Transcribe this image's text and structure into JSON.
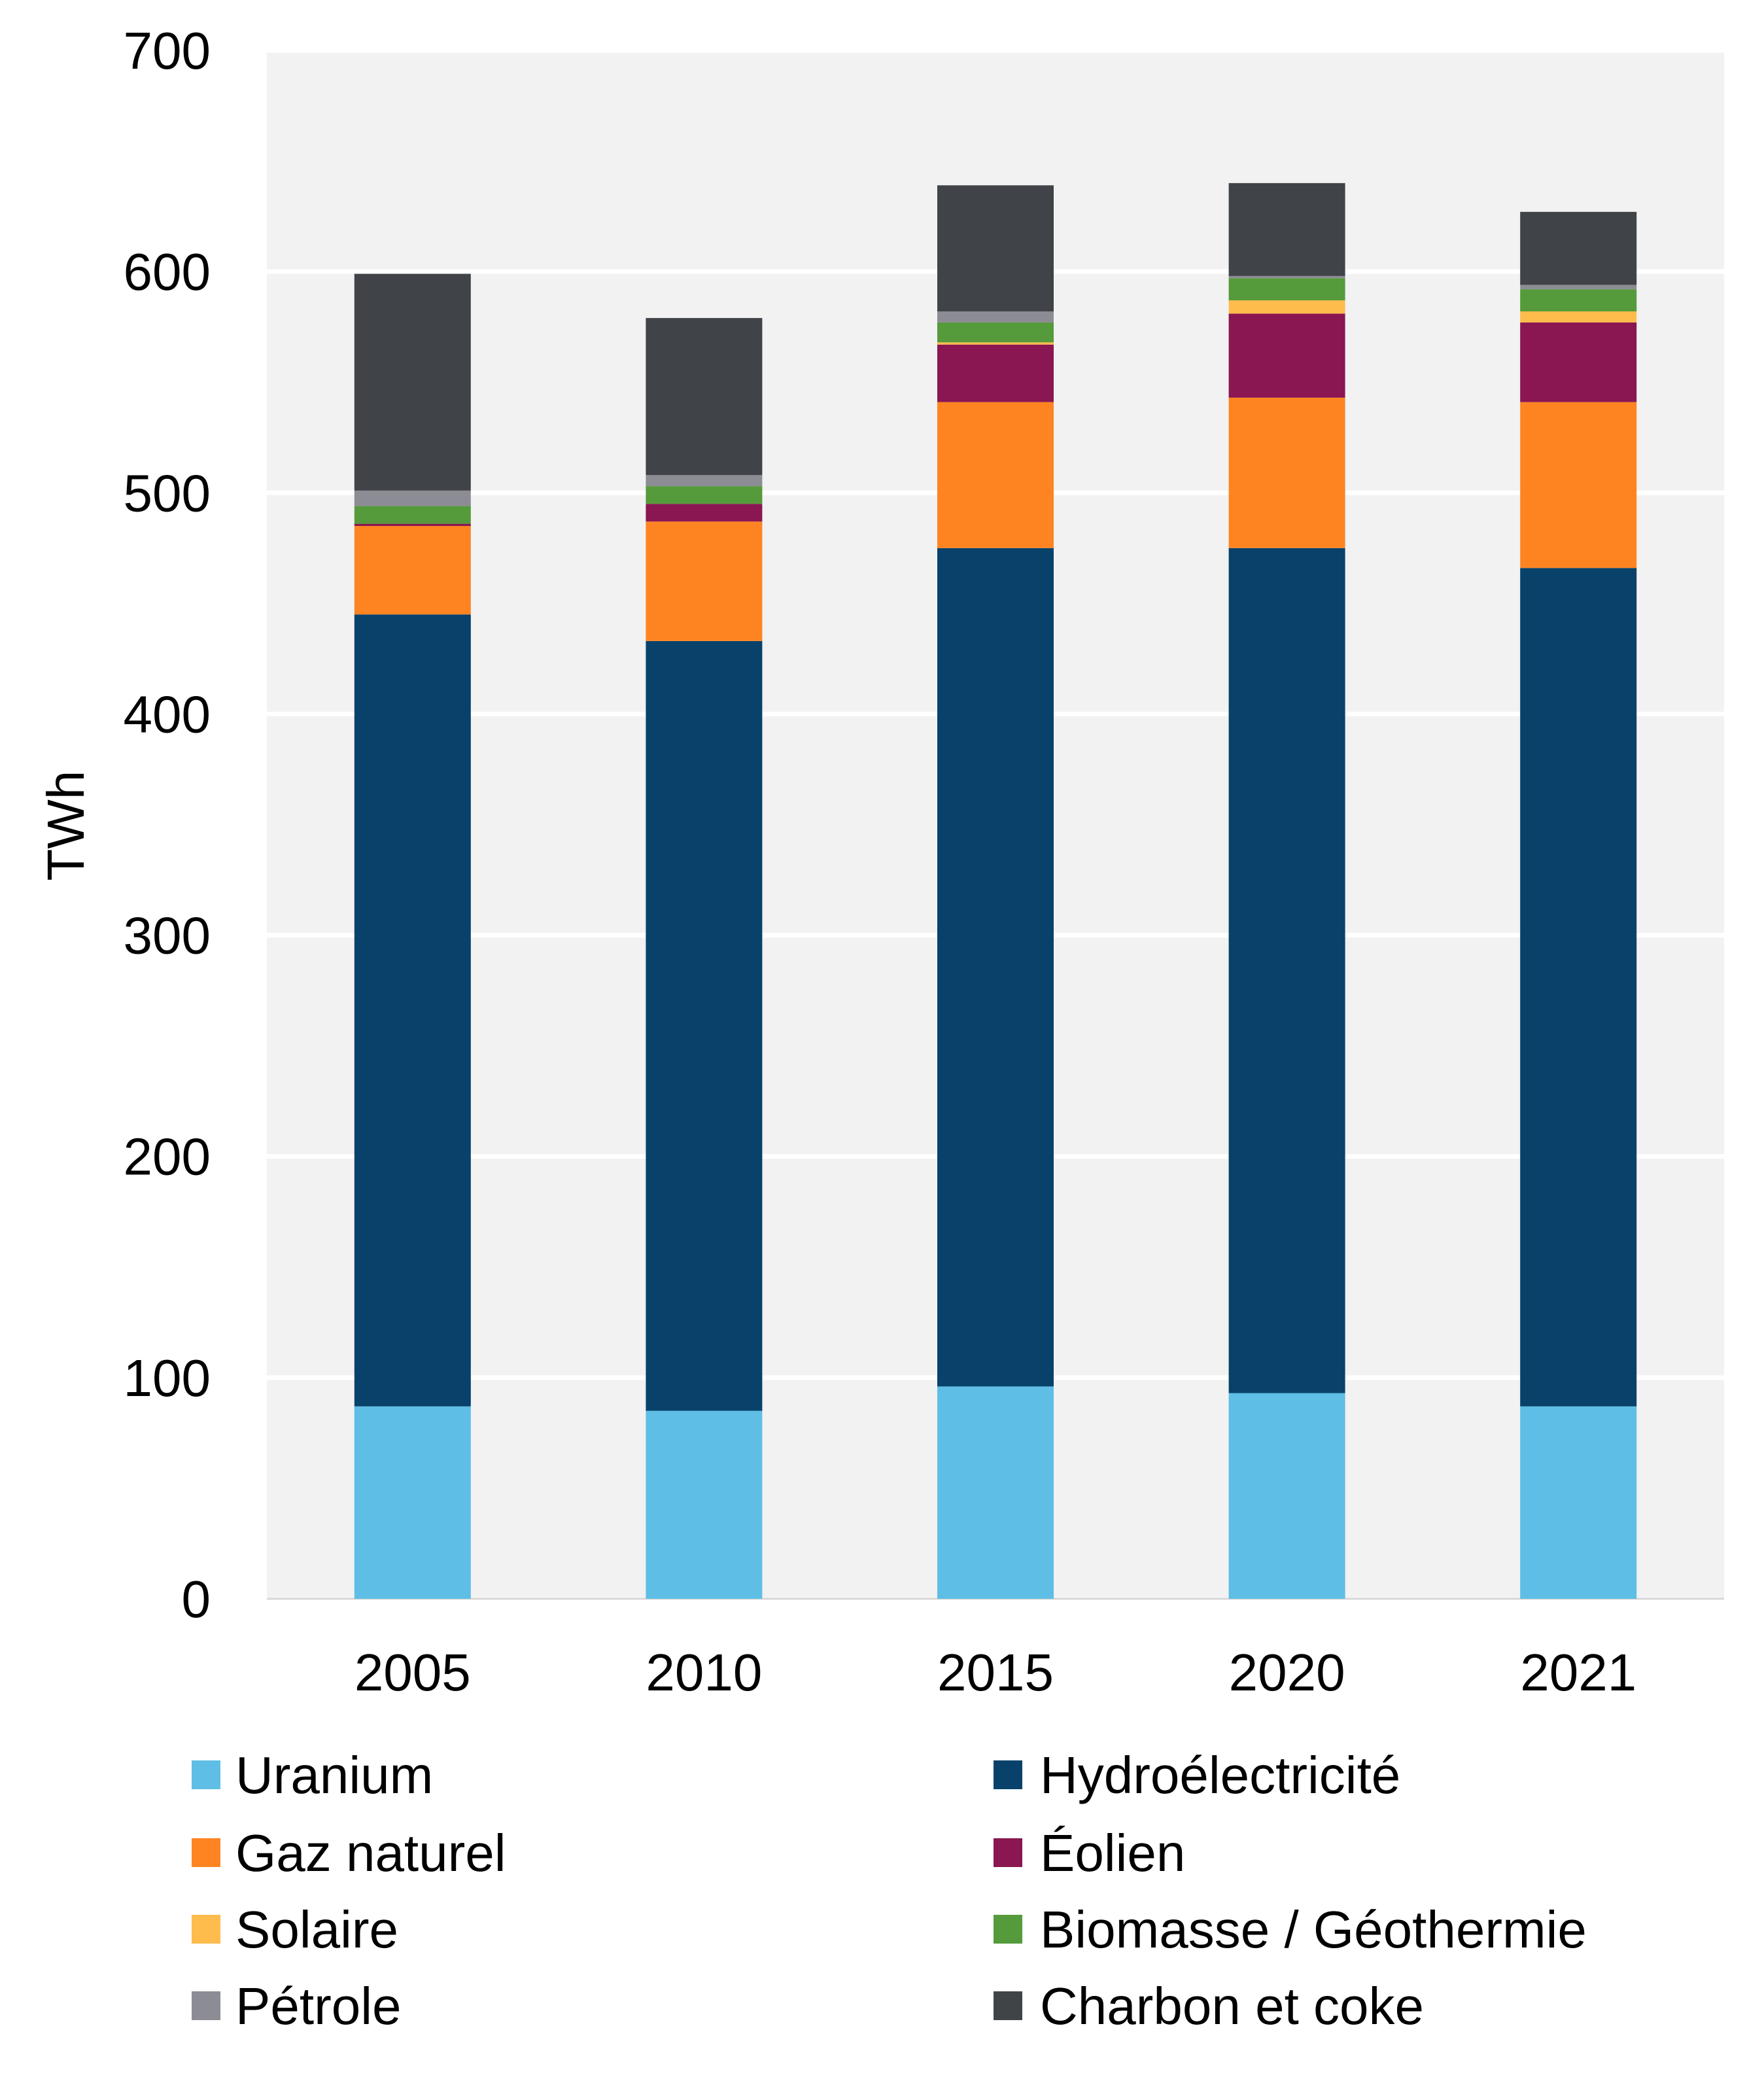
{
  "chart_data": {
    "type": "stacked-bar",
    "title": "",
    "xlabel": "",
    "ylabel": "TWh",
    "ylim": [
      0,
      700
    ],
    "yticks": [
      0,
      100,
      200,
      300,
      400,
      500,
      600,
      700
    ],
    "grid": true,
    "legend_position": "bottom",
    "categories": [
      "2005",
      "2010",
      "2015",
      "2020",
      "2021"
    ],
    "series": [
      {
        "name": "Uranium",
        "color": "#5FBEE5",
        "values": [
          87,
          85,
          96,
          93,
          87
        ]
      },
      {
        "name": "Hydroélectricité",
        "color": "#08426A",
        "values": [
          358,
          348,
          379,
          382,
          379
        ]
      },
      {
        "name": "Gaz naturel",
        "color": "#FE8422",
        "values": [
          40,
          54,
          66,
          68,
          75
        ]
      },
      {
        "name": "Éolien",
        "color": "#8A1652",
        "values": [
          1,
          8,
          26,
          38,
          36
        ]
      },
      {
        "name": "Solaire",
        "color": "#FDBC4B",
        "values": [
          0,
          0,
          1,
          6,
          5
        ]
      },
      {
        "name": "Biomasse / Géothermie",
        "color": "#559A3B",
        "values": [
          8,
          8,
          9,
          10,
          10
        ]
      },
      {
        "name": "Pétrole",
        "color": "#8C8C94",
        "values": [
          7,
          5,
          5,
          1,
          2
        ]
      },
      {
        "name": "Charbon et coke",
        "color": "#404348",
        "values": [
          98,
          71,
          57,
          42,
          33
        ]
      }
    ]
  }
}
